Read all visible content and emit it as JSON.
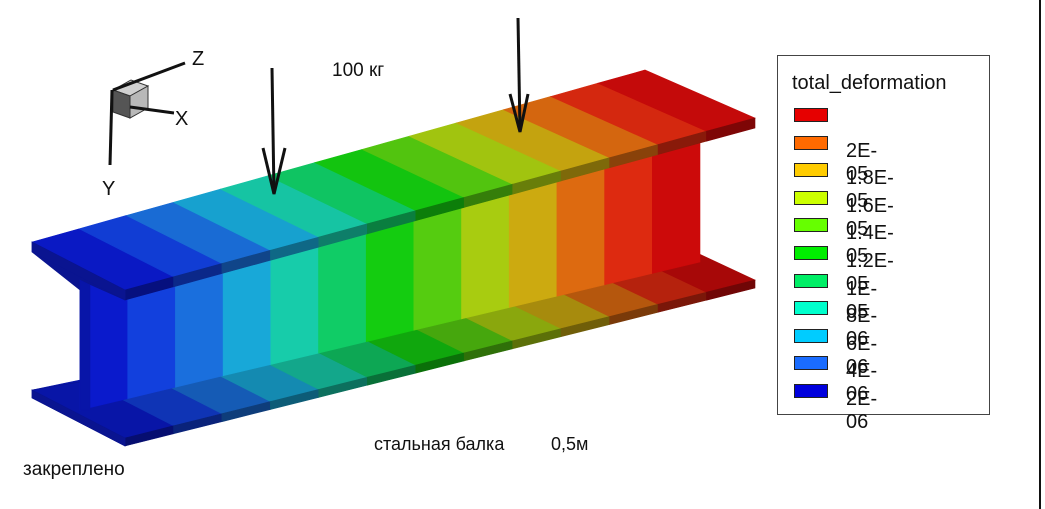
{
  "axes": {
    "z": "Z",
    "x": "X",
    "y": "Y"
  },
  "load_label": "100 кг",
  "beam_label": "стальная балка",
  "length_label": "0,5м",
  "fixed_label": "закреплено",
  "legend": {
    "title": "total_deformation",
    "entries": [
      {
        "color": "#e60000",
        "label": ""
      },
      {
        "color": "#ff6a00",
        "label": "2E-05"
      },
      {
        "color": "#ffcc00",
        "label": "1.8E-05"
      },
      {
        "color": "#ccff00",
        "label": "1.6E-05"
      },
      {
        "color": "#66ff00",
        "label": "1.4E-05"
      },
      {
        "color": "#00ee00",
        "label": "1.2E-05"
      },
      {
        "color": "#00ee66",
        "label": "1E-05"
      },
      {
        "color": "#00ffcc",
        "label": "8E-06"
      },
      {
        "color": "#00ccff",
        "label": "6E-06"
      },
      {
        "color": "#1a6cff",
        "label": "4E-06"
      },
      {
        "color": "#0000dd",
        "label": "2E-06"
      }
    ]
  },
  "contour_colors": [
    "#0a1acc",
    "#1240dd",
    "#1a6fdd",
    "#18a8d8",
    "#17ccaa",
    "#10cc66",
    "#14cc10",
    "#55cc10",
    "#a8cc10",
    "#ccaa10",
    "#dd6a10",
    "#dd2a10",
    "#cc0a0a"
  ]
}
